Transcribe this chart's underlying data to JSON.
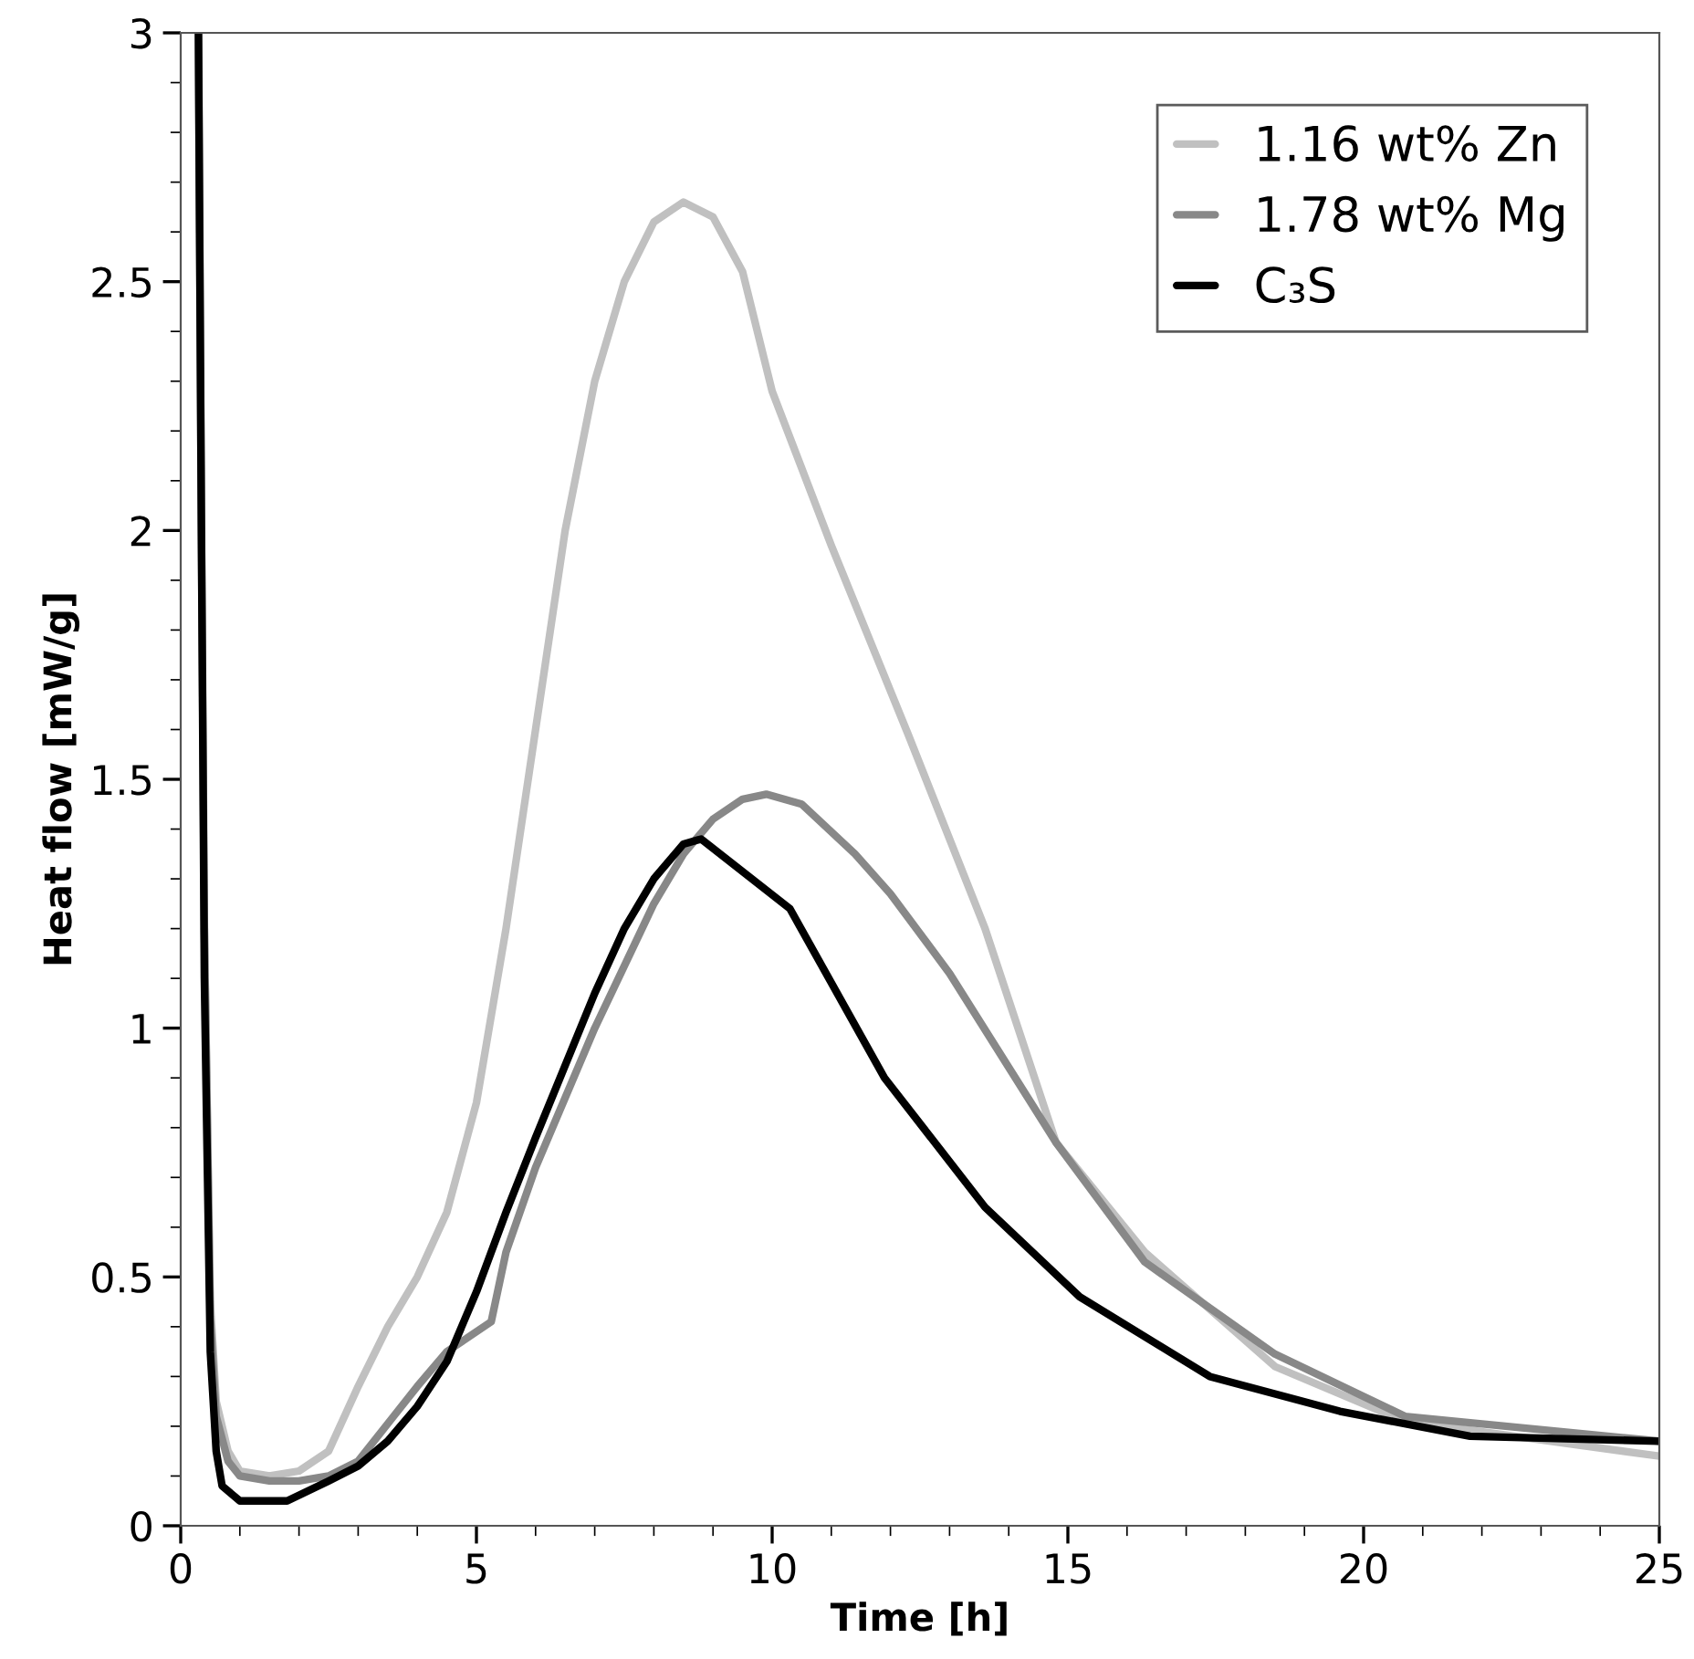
{
  "chart_data": {
    "type": "line",
    "xlabel": "Time [h]",
    "ylabel": "Heat flow [mW/g]",
    "xlim": [
      0,
      25
    ],
    "ylim": [
      0,
      3
    ],
    "xticks": [
      0,
      5,
      10,
      15,
      20,
      25
    ],
    "yticks": [
      0,
      0.5,
      1,
      1.5,
      2,
      2.5,
      3
    ],
    "grid": false,
    "legend": "top right",
    "marker": "none",
    "line_style": "solid",
    "series": [
      {
        "name": "1.16 wt% Zn",
        "color": "#c0c0c0",
        "x": [
          0.4,
          0.5,
          0.6,
          0.8,
          1.0,
          1.5,
          2.0,
          2.5,
          3.0,
          3.5,
          4.0,
          4.5,
          5.0,
          5.5,
          6.0,
          6.5,
          7.0,
          7.5,
          8.0,
          8.5,
          9.0,
          9.5,
          10,
          11,
          12.3,
          13.6,
          14.8,
          16.3,
          18.5,
          20.7,
          25
        ],
        "values": [
          1.2,
          0.45,
          0.25,
          0.15,
          0.11,
          0.1,
          0.11,
          0.15,
          0.28,
          0.4,
          0.5,
          0.63,
          0.85,
          1.2,
          1.6,
          2.0,
          2.3,
          2.5,
          2.62,
          2.66,
          2.63,
          2.52,
          2.28,
          1.97,
          1.59,
          1.2,
          0.77,
          0.55,
          0.32,
          0.21,
          0.14
        ]
      },
      {
        "name": "1.78 wt% Mg",
        "color": "#888888",
        "x": [
          0.3,
          0.35,
          0.4,
          0.5,
          0.6,
          0.8,
          1.0,
          1.5,
          2.0,
          2.5,
          3.0,
          3.6,
          4.0,
          4.5,
          5.25,
          5.5,
          6.0,
          7.0,
          8.0,
          8.5,
          9.0,
          9.5,
          9.9,
          10.5,
          11.4,
          12.0,
          13.0,
          14.8,
          16.3,
          18.5,
          20.7,
          25
        ],
        "values": [
          3.0,
          2.0,
          1.2,
          0.42,
          0.22,
          0.13,
          0.1,
          0.09,
          0.09,
          0.1,
          0.13,
          0.22,
          0.28,
          0.35,
          0.41,
          0.55,
          0.72,
          1.0,
          1.25,
          1.35,
          1.42,
          1.46,
          1.47,
          1.45,
          1.35,
          1.27,
          1.11,
          0.77,
          0.53,
          0.345,
          0.22,
          0.17
        ]
      },
      {
        "name": "C₃S",
        "color": "#000000",
        "x": [
          0.3,
          0.35,
          0.4,
          0.5,
          0.6,
          0.7,
          1.0,
          1.5,
          1.8,
          2.5,
          3.0,
          3.5,
          4.0,
          4.5,
          5.0,
          5.5,
          6.0,
          7.0,
          7.5,
          8.0,
          8.5,
          8.8,
          10.3,
          11.9,
          13.6,
          15.2,
          17.4,
          19.6,
          21.8,
          25
        ],
        "values": [
          3.0,
          2.0,
          1.1,
          0.35,
          0.15,
          0.08,
          0.05,
          0.05,
          0.05,
          0.09,
          0.12,
          0.17,
          0.24,
          0.33,
          0.47,
          0.63,
          0.78,
          1.07,
          1.2,
          1.3,
          1.37,
          1.38,
          1.24,
          0.9,
          0.64,
          0.46,
          0.3,
          0.23,
          0.18,
          0.17
        ]
      }
    ]
  }
}
